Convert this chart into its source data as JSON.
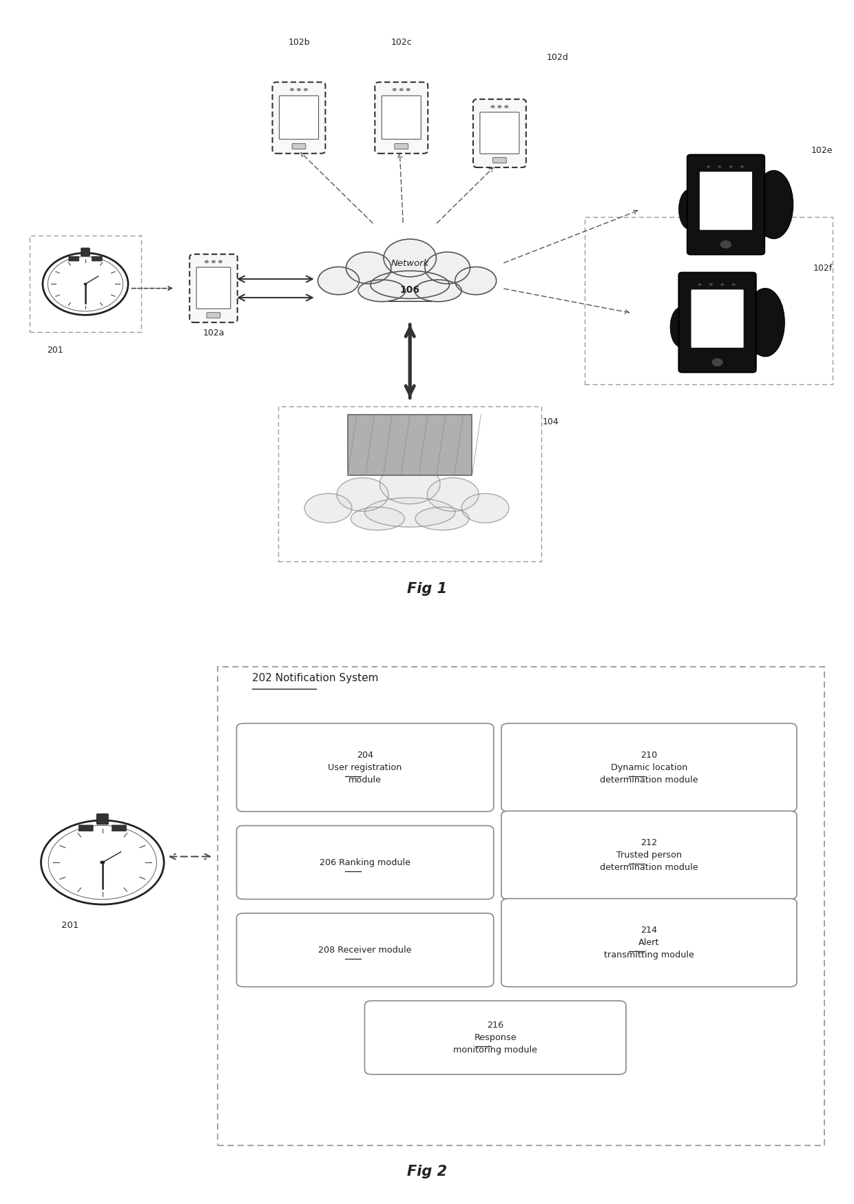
{
  "fig1_title": "Fig 1",
  "fig2_title": "Fig 2",
  "bg_color": "#ffffff",
  "text_color": "#222222",
  "fig1_labels": {
    "network": "Network",
    "network_num": "106",
    "server": "104",
    "wearable": "201",
    "phone_a": "102a",
    "phone_b": "102b",
    "phone_c": "102c",
    "phone_d": "102d",
    "tablet_e": "102e",
    "tablet_f": "102f"
  },
  "fig2_labels": {
    "system_title": "202 Notification System",
    "wearable": "201",
    "module1_num": "204",
    "module1_text": "User registration\nmodule",
    "module2_num": "206",
    "module2_text": "Ranking module",
    "module3_num": "208",
    "module3_text": "Receiver module",
    "module4_num": "210",
    "module4_text": "Dynamic location\ndetermination module",
    "module5_num": "212",
    "module5_text": "Trusted person\ndetermination module",
    "module6_num": "214",
    "module6_text": "Alert\ntransmitting module",
    "module7_num": "216",
    "module7_text": "Response\nmonitoring module"
  }
}
